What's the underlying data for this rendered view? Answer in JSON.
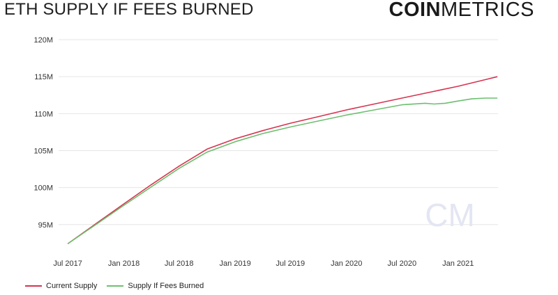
{
  "header": {
    "title": "ETH SUPPLY IF FEES BURNED",
    "brand_bold": "COIN",
    "brand_light": "METRICS",
    "watermark": "CM"
  },
  "chart_data": {
    "type": "line",
    "title": "ETH SUPPLY IF FEES BURNED",
    "xlabel": "",
    "ylabel": "",
    "x_ticks": [
      "Jul 2017",
      "Jan 2018",
      "Jul 2018",
      "Jan 2019",
      "Jul 2019",
      "Jan 2020",
      "Jul 2020",
      "Jan 2021"
    ],
    "y_ticks": [
      "95M",
      "100M",
      "105M",
      "110M",
      "115M",
      "120M"
    ],
    "y_tick_values": [
      95,
      100,
      105,
      110,
      115,
      120
    ],
    "ylim": [
      91.5,
      120
    ],
    "xlim": [
      "2017-06-01",
      "2021-05-12"
    ],
    "grid": true,
    "legend": "bottom-left",
    "series": [
      {
        "name": "Current Supply",
        "color": "#d7334f",
        "x": [
          "2017-07-01",
          "2017-10-01",
          "2018-01-01",
          "2018-04-01",
          "2018-07-01",
          "2018-10-01",
          "2019-01-01",
          "2019-04-01",
          "2019-07-01",
          "2019-10-01",
          "2020-01-01",
          "2020-04-01",
          "2020-07-01",
          "2020-10-01",
          "2021-01-01",
          "2021-04-01",
          "2021-05-10"
        ],
        "values": [
          92.4,
          95.1,
          97.8,
          100.4,
          102.9,
          105.2,
          106.6,
          107.7,
          108.7,
          109.6,
          110.5,
          111.3,
          112.1,
          112.9,
          113.7,
          114.6,
          115.0
        ]
      },
      {
        "name": "Supply If Fees Burned",
        "color": "#6cbf6e",
        "x": [
          "2017-07-01",
          "2017-10-01",
          "2018-01-01",
          "2018-04-01",
          "2018-07-01",
          "2018-10-01",
          "2019-01-01",
          "2019-04-01",
          "2019-07-01",
          "2019-10-01",
          "2020-01-01",
          "2020-04-01",
          "2020-07-01",
          "2020-09-15",
          "2020-10-15",
          "2020-11-20",
          "2021-01-01",
          "2021-02-15",
          "2021-04-01",
          "2021-05-10"
        ],
        "values": [
          92.4,
          95.0,
          97.6,
          100.1,
          102.6,
          104.8,
          106.2,
          107.3,
          108.2,
          109.0,
          109.8,
          110.5,
          111.2,
          111.4,
          111.3,
          111.4,
          111.7,
          112.0,
          112.1,
          112.1
        ]
      }
    ]
  }
}
